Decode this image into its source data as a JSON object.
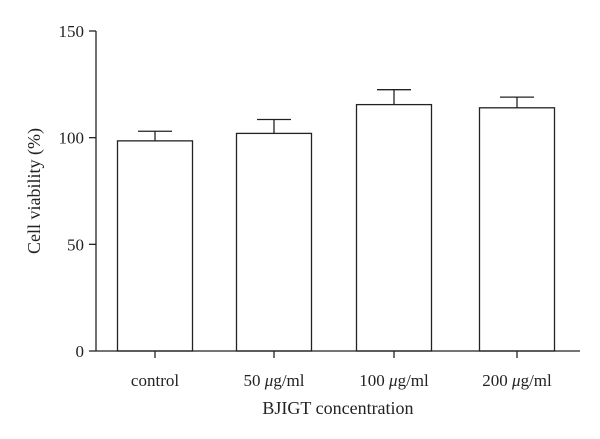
{
  "chart_data": {
    "type": "bar",
    "categories": [
      "control",
      "50 μg/ml",
      "100 μg/ml",
      "200 μg/ml"
    ],
    "values": [
      98.5,
      102,
      115.5,
      114
    ],
    "errors": [
      4.5,
      6.5,
      7,
      5
    ],
    "xlabel": "BJIGT concentration",
    "ylabel": "Cell viability (%)",
    "ylim": [
      0,
      150
    ],
    "yticks": [
      0,
      50,
      100,
      150
    ],
    "ytick_labels": [
      "0",
      "50",
      "100",
      "150"
    ],
    "grid": false,
    "bar_color": "#ffffff",
    "line_color": "#222222"
  }
}
